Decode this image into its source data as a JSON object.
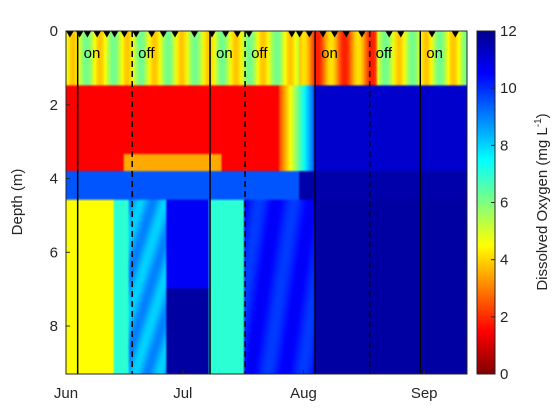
{
  "chart_data": {
    "type": "heatmap",
    "title": "",
    "xlabel": "",
    "ylabel": "Depth (m)",
    "colorbar_label": "Dissolved Oxygen (mg L",
    "colorbar_label_sup": "-1",
    "colorbar_label_end": ")",
    "colormap": "jet",
    "x_ticks": [
      "Jun",
      "Jul",
      "Aug",
      "Sep"
    ],
    "y_ticks": [
      "0",
      "2",
      "4",
      "6",
      "8"
    ],
    "y_range": [
      0,
      9.3
    ],
    "y_reversed": true,
    "x_range_days": [
      0,
      103
    ],
    "x_tick_days": [
      0,
      30,
      61,
      92
    ],
    "c_range": [
      0,
      12
    ],
    "c_ticks": [
      "0",
      "2",
      "4",
      "6",
      "8",
      "10",
      "12"
    ],
    "phases": [
      {
        "label": "on",
        "start_day": 3,
        "end_day": 17
      },
      {
        "label": "off",
        "start_day": 17,
        "end_day": 37
      },
      {
        "label": "on",
        "start_day": 37,
        "end_day": 46
      },
      {
        "label": "off",
        "start_day": 46,
        "end_day": 64
      },
      {
        "label": "on",
        "start_day": 64,
        "end_day": 78
      },
      {
        "label": "off",
        "start_day": 78,
        "end_day": 91
      },
      {
        "label": "on",
        "start_day": 91,
        "end_day": 103
      }
    ],
    "boundaries": [
      {
        "day": 3,
        "style": "solid"
      },
      {
        "day": 17,
        "style": "dashed"
      },
      {
        "day": 37,
        "style": "solid"
      },
      {
        "day": 46,
        "style": "dashed"
      },
      {
        "day": 64,
        "style": "solid"
      },
      {
        "day": 78,
        "style": "dashed"
      },
      {
        "day": 91,
        "style": "solid"
      }
    ],
    "sampling_days": [
      1,
      3.5,
      5.5,
      8,
      10.5,
      12.5,
      15,
      18,
      22,
      25,
      28,
      33,
      37.5,
      41,
      44,
      47,
      58,
      60,
      62.5,
      66,
      69,
      72,
      76,
      83,
      86,
      94,
      100
    ],
    "grid": false,
    "legend": "none"
  }
}
